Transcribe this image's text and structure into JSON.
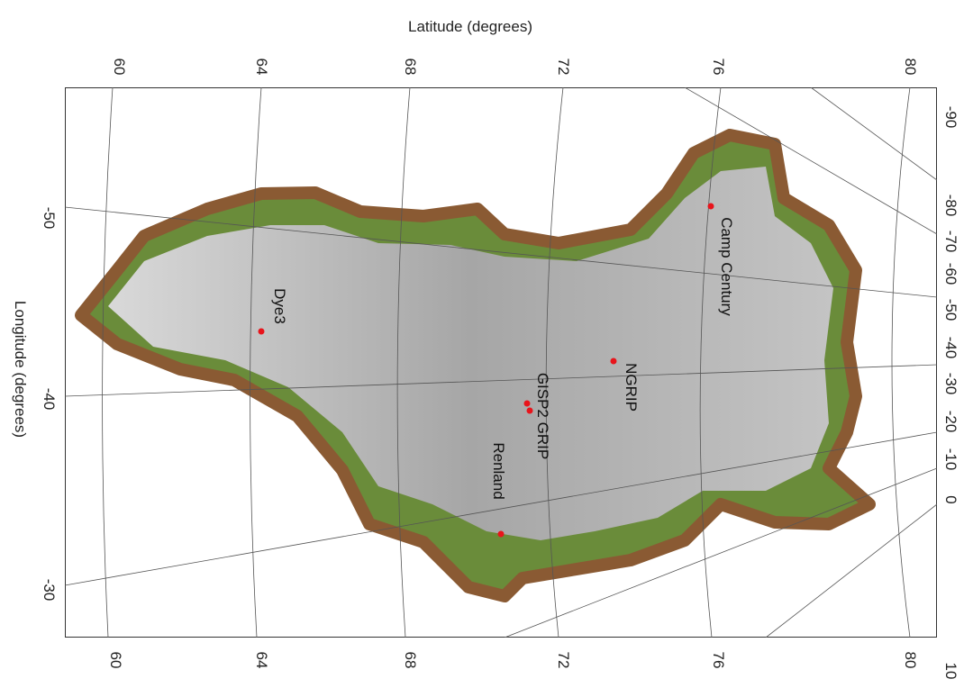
{
  "axes": {
    "top_title": "Latitude (degrees)",
    "left_title": "Longitude (degrees)",
    "latitude_ticks": [
      "60",
      "64",
      "68",
      "72",
      "76",
      "80"
    ],
    "left_longitude_ticks": [
      "-50",
      "-40",
      "-30"
    ],
    "right_longitude_ticks": [
      "-90",
      "-80",
      "-70",
      "-60",
      "-50",
      "-40",
      "-30",
      "-20",
      "-10",
      "0",
      "10"
    ]
  },
  "sites": [
    {
      "name": "Camp Century"
    },
    {
      "name": "Dye3"
    },
    {
      "name": "NGRIP"
    },
    {
      "name": "GISP2 GRIP"
    },
    {
      "name": "Renland"
    }
  ],
  "colors": {
    "site_marker": "#e8141b",
    "ice": "#a9a9a9",
    "land_green": "#5aa832",
    "land_brown": "#8a5a33"
  }
}
